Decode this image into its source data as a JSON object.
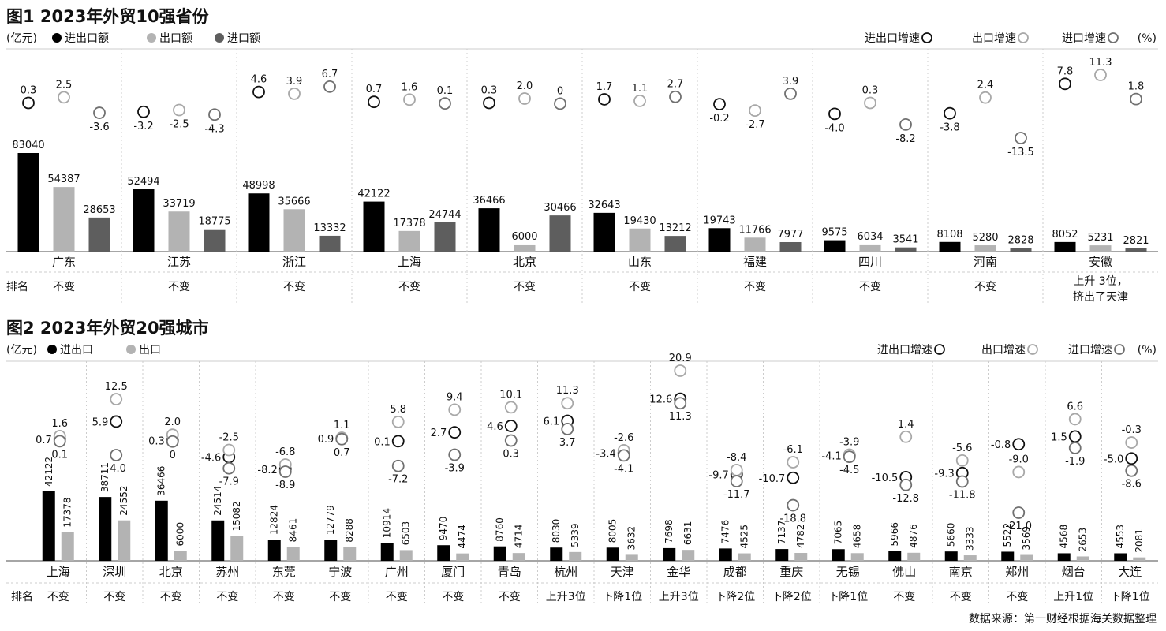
{
  "chart_data": [
    {
      "type": "bar",
      "title": "图1 2023年外贸10强省份",
      "unit": "(亿元)",
      "legend": {
        "bars": [
          "进出口额",
          "出口额",
          "进口额"
        ],
        "rates": [
          "进出口增速",
          "出口增速",
          "进口增速"
        ],
        "rate_unit": "(%)"
      },
      "rank_label": "排名",
      "categories": [
        "广东",
        "江苏",
        "浙江",
        "上海",
        "北京",
        "山东",
        "福建",
        "四川",
        "河南",
        "安徽"
      ],
      "series": [
        {
          "name": "进出口额",
          "values": [
            83040,
            52494,
            48998,
            42122,
            36466,
            32643,
            19743,
            9575,
            8108,
            8052
          ]
        },
        {
          "name": "出口额",
          "values": [
            54387,
            33719,
            35666,
            17378,
            6000,
            19430,
            11766,
            6034,
            5280,
            5231
          ]
        },
        {
          "name": "进口额",
          "values": [
            28653,
            18775,
            13332,
            24744,
            30466,
            13212,
            7977,
            3541,
            2828,
            2821
          ]
        }
      ],
      "growth": [
        {
          "name": "进出口增速",
          "values": [
            "0.3",
            "-3.2",
            "4.6",
            "0.7",
            "0.3",
            "1.7",
            "-0.2",
            "-4.0",
            "-3.8",
            "7.8"
          ]
        },
        {
          "name": "出口增速",
          "values": [
            "2.5",
            "-2.5",
            "3.9",
            "1.6",
            "2.0",
            "1.1",
            "-2.7",
            "0.3",
            "2.4",
            "11.3"
          ]
        },
        {
          "name": "进口增速",
          "values": [
            "-3.6",
            "-4.3",
            "6.7",
            "0.1",
            "0",
            "2.7",
            "3.9",
            "-8.2",
            "-13.5",
            "1.8"
          ]
        }
      ],
      "ranks": [
        "不变",
        "不变",
        "不变",
        "不变",
        "不变",
        "不变",
        "不变",
        "不变",
        "不变",
        "上升 3位，\n挤出了天津"
      ]
    },
    {
      "type": "bar",
      "title": "图2 2023年外贸20强城市",
      "unit": "(亿元)",
      "legend": {
        "bars": [
          "进出口",
          "出口"
        ],
        "rates": [
          "进出口增速",
          "出口增速",
          "进口增速"
        ],
        "rate_unit": "(%)"
      },
      "rank_label": "排名",
      "categories": [
        "上海",
        "深圳",
        "北京",
        "苏州",
        "东莞",
        "宁波",
        "广州",
        "厦门",
        "青岛",
        "杭州",
        "天津",
        "金华",
        "成都",
        "重庆",
        "无锡",
        "佛山",
        "南京",
        "郑州",
        "烟台",
        "大连"
      ],
      "series": [
        {
          "name": "进出口",
          "values": [
            42122,
            38711,
            36466,
            24514,
            12824,
            12779,
            10914,
            9470,
            8760,
            8030,
            8005,
            7698,
            7476,
            7137,
            7065,
            5966,
            5660,
            5522,
            4568,
            4553
          ]
        },
        {
          "name": "出口",
          "values": [
            17378,
            24552,
            6000,
            15082,
            8461,
            8288,
            6503,
            4474,
            4714,
            5339,
            3632,
            6631,
            4525,
            4782,
            4658,
            4876,
            3333,
            3569,
            2653,
            2081
          ]
        }
      ],
      "growth": [
        {
          "name": "进出口增速",
          "values": [
            "0.7",
            "5.9",
            "0.3",
            "-4.6",
            "-8.2",
            "0.9",
            "0.1",
            "2.7",
            "4.6",
            "6.1",
            "-3.4",
            "12.6",
            "-9.7",
            "-10.7",
            "-4.1",
            "-10.5",
            "-9.3",
            "-0.8",
            "1.5",
            "-5.0"
          ]
        },
        {
          "name": "出口增速",
          "values": [
            "1.6",
            "12.5",
            "2.0",
            "-2.5",
            "-6.8",
            "1.1",
            "5.8",
            "9.4",
            "10.1",
            "11.3",
            "-2.6",
            "20.9",
            "-8.4",
            "-6.1",
            "-3.9",
            "1.4",
            "-5.6",
            "-9.0",
            "6.6",
            "-0.3"
          ]
        },
        {
          "name": "进口增速",
          "values": [
            "0.1",
            "-4.0",
            "0",
            "-7.9",
            "-8.9",
            "0.7",
            "-7.2",
            "-3.9",
            "0.3",
            "3.7",
            "-4.1",
            "11.3",
            "-11.7",
            "-18.8",
            "-4.5",
            "-12.8",
            "-11.8",
            "-21.0",
            "-1.9",
            "-8.6"
          ]
        }
      ],
      "ranks": [
        "不变",
        "不变",
        "不变",
        "不变",
        "不变",
        "不变",
        "不变",
        "不变",
        "不变",
        "上升3位",
        "下降1位",
        "上升3位",
        "下降2位",
        "下降2位",
        "下降1位",
        "不变",
        "不变",
        "不变",
        "上升1位",
        "下降1位"
      ]
    }
  ],
  "colors": {
    "total": "#000000",
    "export": "#b3b3b3",
    "import": "#5e5e5e",
    "total_circle": "#111111",
    "export_circle": "#a8a8a8",
    "import_circle": "#707070",
    "grid": "#cccccc",
    "baseline": "#888888"
  },
  "source": "数据来源：第一财经根据海关数据整理"
}
